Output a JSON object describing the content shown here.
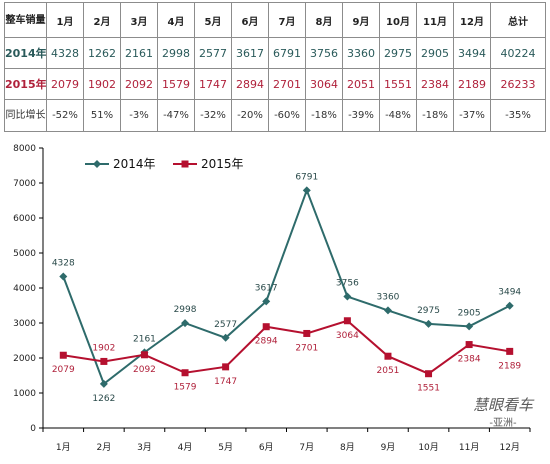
{
  "table": {
    "corner_label": "整车销量",
    "months": [
      "1月",
      "2月",
      "3月",
      "4月",
      "5月",
      "6月",
      "7月",
      "8月",
      "9月",
      "10月",
      "11月",
      "12月"
    ],
    "total_label": "总计",
    "rows": [
      {
        "label": "2014年",
        "values": [
          "4328",
          "1262",
          "2161",
          "2998",
          "2577",
          "3617",
          "6791",
          "3756",
          "3360",
          "2975",
          "2905",
          "3494"
        ],
        "total": "40224"
      },
      {
        "label": "2015年",
        "values": [
          "2079",
          "1902",
          "2092",
          "1579",
          "1747",
          "2894",
          "2701",
          "3064",
          "2051",
          "1551",
          "2384",
          "2189"
        ],
        "total": "26233"
      }
    ],
    "yoy_label": "同比增长",
    "yoy_values": [
      "-52%",
      "51%",
      "-3%",
      "-47%",
      "-32%",
      "-20%",
      "-60%",
      "-18%",
      "-39%",
      "-48%",
      "-18%",
      "-37%"
    ],
    "yoy_total": "-35%"
  },
  "chart_data": {
    "type": "line",
    "categories": [
      "1月",
      "2月",
      "3月",
      "4月",
      "5月",
      "6月",
      "7月",
      "8月",
      "9月",
      "10月",
      "11月",
      "12月"
    ],
    "ylim": [
      0,
      8000
    ],
    "yticks": [
      0,
      1000,
      2000,
      3000,
      4000,
      5000,
      6000,
      7000,
      8000
    ],
    "grid": false,
    "legend_position": "top-left",
    "series": [
      {
        "name": "2014年",
        "color": "#2e6b6b",
        "marker": "diamond",
        "values": [
          4328,
          1262,
          2161,
          2998,
          2577,
          3617,
          6791,
          3756,
          3360,
          2975,
          2905,
          3494
        ]
      },
      {
        "name": "2015年",
        "color": "#b5102f",
        "marker": "square",
        "values": [
          2079,
          1902,
          2092,
          1579,
          1747,
          2894,
          2701,
          3064,
          2051,
          1551,
          2384,
          2189
        ]
      }
    ]
  },
  "watermark": {
    "text": "慧眼看车",
    "subtext": "-亚洲-"
  }
}
